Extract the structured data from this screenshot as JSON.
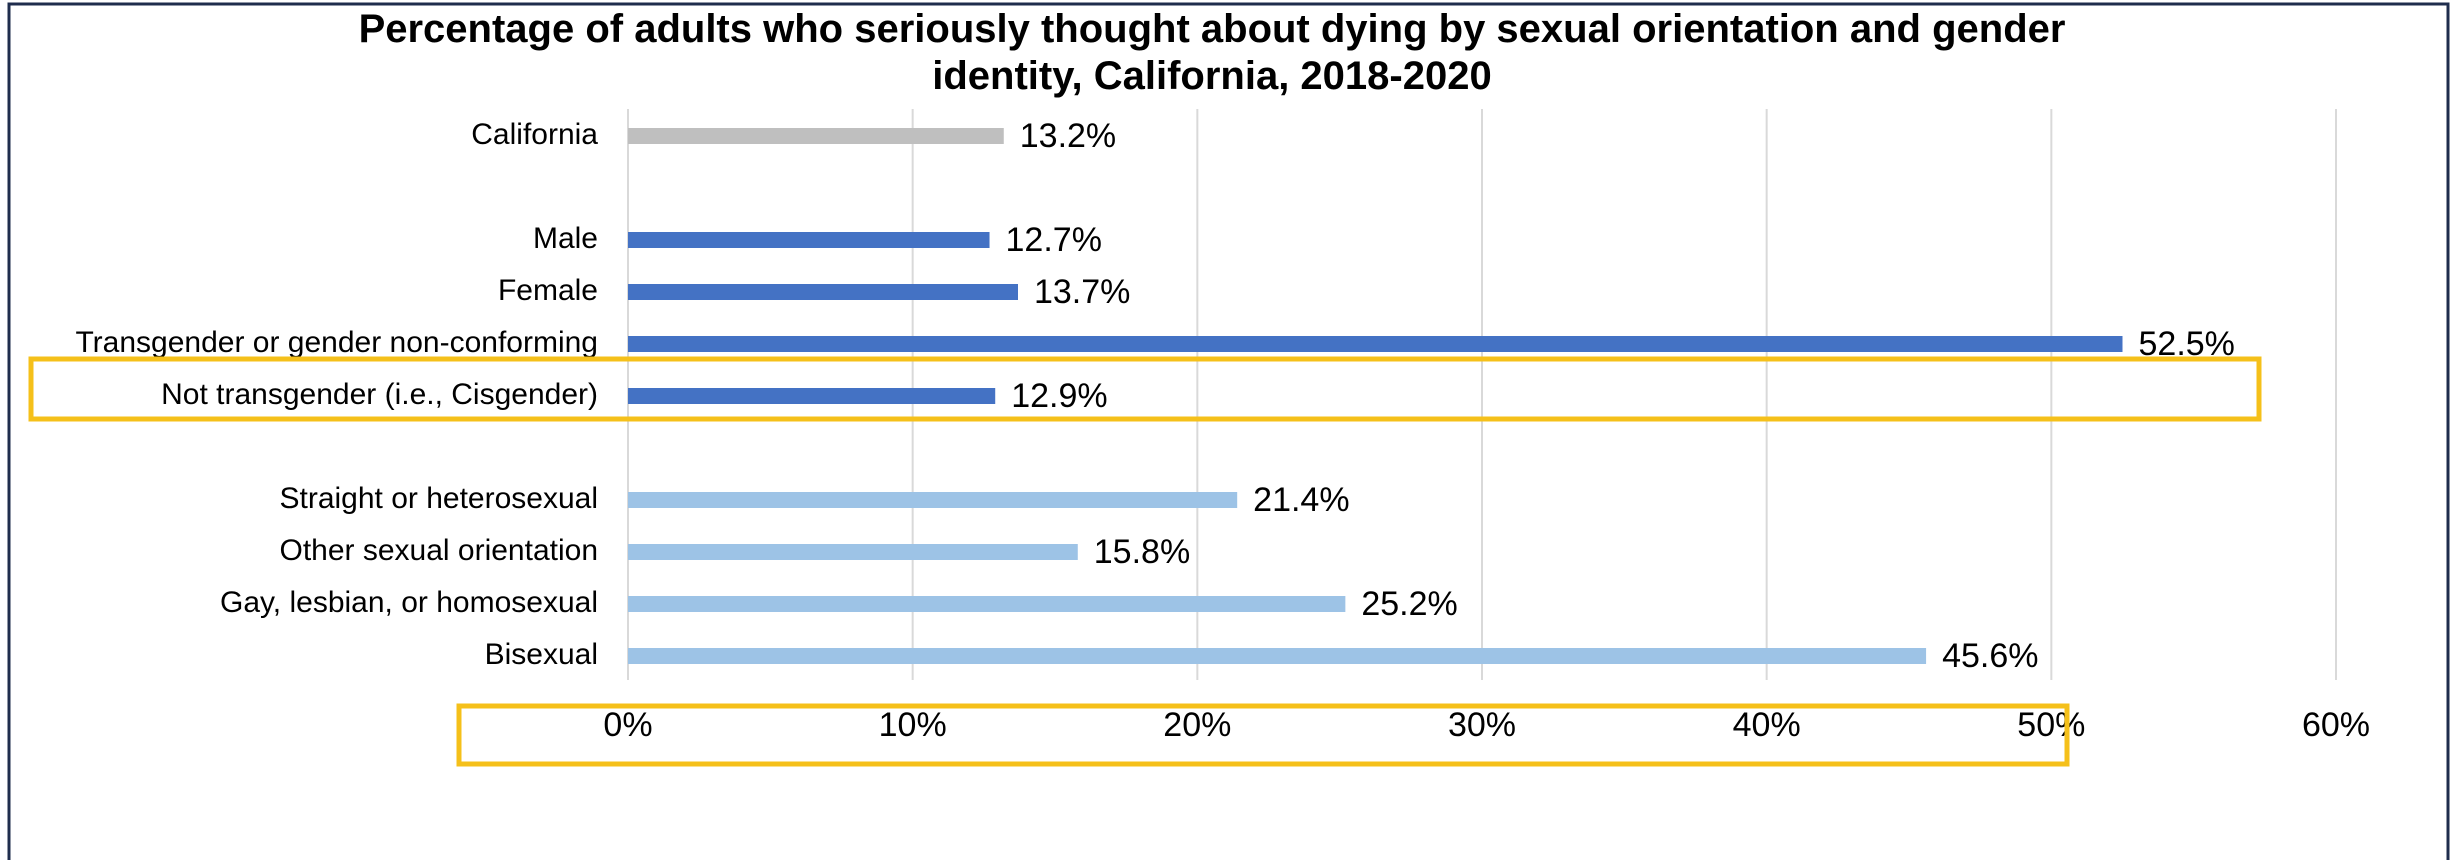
{
  "chart_data": {
    "type": "bar",
    "orientation": "horizontal",
    "title": "Percentage of adults who seriously thought about dying by sexual orientation and gender identity, California, 2018-2020",
    "categories": [
      "California",
      null,
      "Male",
      "Female",
      "Transgender or gender non-conforming",
      "Not transgender (i.e., Cisgender)",
      null,
      "Straight or heterosexual",
      "Other sexual orientation",
      "Gay, lesbian, or homosexual",
      "Bisexual"
    ],
    "values": [
      13.2,
      null,
      12.7,
      13.7,
      52.5,
      12.9,
      null,
      21.4,
      15.8,
      25.2,
      45.6
    ],
    "value_labels": [
      "13.2%",
      null,
      "12.7%",
      "13.7%",
      "52.5%",
      "12.9%",
      null,
      "21.4%",
      "15.8%",
      "25.2%",
      "45.6%"
    ],
    "colors": [
      "#bfbfbf",
      null,
      "#4472c4",
      "#4472c4",
      "#4472c4",
      "#4472c4",
      null,
      "#9dc3e6",
      "#9dc3e6",
      "#9dc3e6",
      "#9dc3e6"
    ],
    "xlim": [
      0,
      60
    ],
    "xticks": [
      {
        "value": 0,
        "label": "0%"
      },
      {
        "value": 10,
        "label": "10%"
      },
      {
        "value": 20,
        "label": "20%"
      },
      {
        "value": 30,
        "label": "30%"
      },
      {
        "value": 40,
        "label": "40%"
      },
      {
        "value": 50,
        "label": "50%"
      },
      {
        "value": 60,
        "label": "60%"
      }
    ],
    "grid": true
  }
}
